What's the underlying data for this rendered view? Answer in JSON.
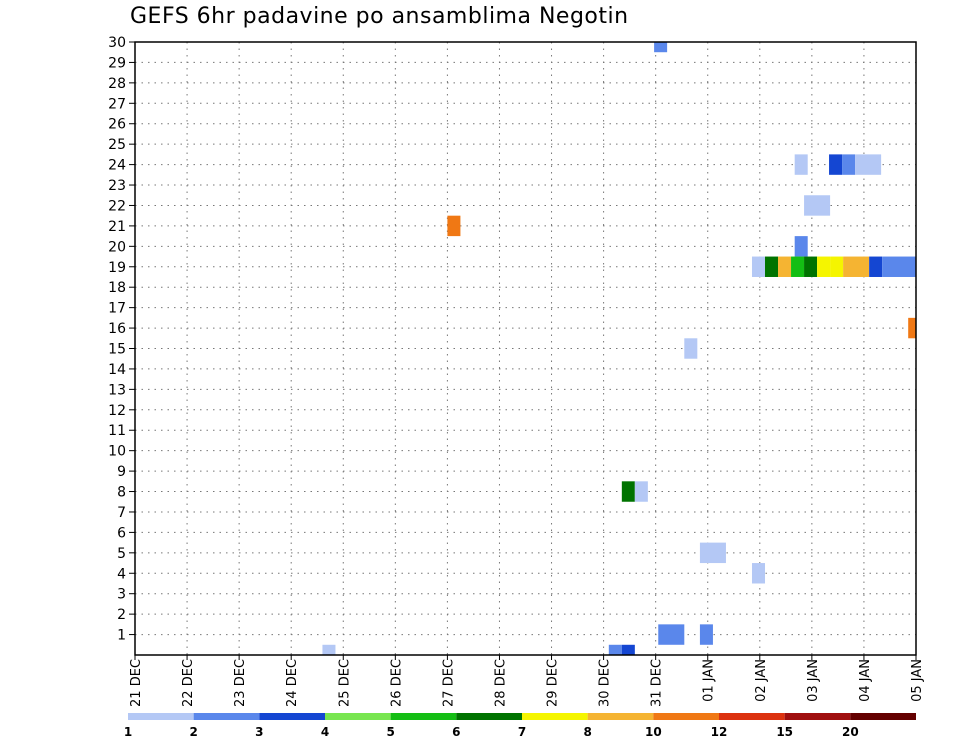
{
  "chart_data": {
    "type": "heatmap",
    "title": "GEFS 6hr padavine po ansamblima Negotin",
    "xlabel": "",
    "ylabel": "",
    "x_ticks": [
      "21 DEC",
      "22 DEC",
      "23 DEC",
      "24 DEC",
      "25 DEC",
      "26 DEC",
      "27 DEC",
      "28 DEC",
      "29 DEC",
      "30 DEC",
      "31 DEC",
      "01 JAN",
      "02 JAN",
      "03 JAN",
      "04 JAN",
      "05 JAN"
    ],
    "y_ticks": [
      1,
      2,
      3,
      4,
      5,
      6,
      7,
      8,
      9,
      10,
      11,
      12,
      13,
      14,
      15,
      16,
      17,
      18,
      19,
      20,
      21,
      22,
      23,
      24,
      25,
      26,
      27,
      28,
      29,
      30
    ],
    "xlim_days": [
      0,
      15
    ],
    "ylim": [
      0,
      30
    ],
    "grid": true,
    "legend": {
      "position": "bottom",
      "labels": [
        "1",
        "2",
        "3",
        "4",
        "5",
        "6",
        "7",
        "8",
        "10",
        "12",
        "15",
        "20"
      ],
      "colors": [
        "#b4c8f5",
        "#5a87eb",
        "#1446d2",
        "#78e650",
        "#14be14",
        "#007300",
        "#f5f500",
        "#f5b432",
        "#f07814",
        "#dc320f",
        "#a00f0f",
        "#640000"
      ]
    },
    "cells": [
      {
        "member": 30,
        "day": 9.97,
        "span": 0.25,
        "value": 2
      },
      {
        "member": 24,
        "day": 12.67,
        "span": 0.25,
        "value": 1
      },
      {
        "member": 24,
        "day": 13.33,
        "span": 0.25,
        "value": 3
      },
      {
        "member": 24,
        "day": 13.58,
        "span": 0.25,
        "value": 2
      },
      {
        "member": 24,
        "day": 13.83,
        "span": 0.5,
        "value": 1
      },
      {
        "member": 22,
        "day": 12.85,
        "span": 0.5,
        "value": 1
      },
      {
        "member": 21,
        "day": 6.0,
        "span": 0.25,
        "value": 10
      },
      {
        "member": 20,
        "day": 12.67,
        "span": 0.25,
        "value": 2
      },
      {
        "member": 19,
        "day": 11.85,
        "span": 0.25,
        "value": 1
      },
      {
        "member": 19,
        "day": 12.1,
        "span": 0.25,
        "value": 6
      },
      {
        "member": 19,
        "day": 12.35,
        "span": 0.25,
        "value": 8
      },
      {
        "member": 19,
        "day": 12.6,
        "span": 0.25,
        "value": 5
      },
      {
        "member": 19,
        "day": 12.85,
        "span": 0.25,
        "value": 6
      },
      {
        "member": 19,
        "day": 13.1,
        "span": 0.25,
        "value": 7
      },
      {
        "member": 19,
        "day": 13.35,
        "span": 0.25,
        "value": 7
      },
      {
        "member": 19,
        "day": 13.6,
        "span": 0.5,
        "value": 8
      },
      {
        "member": 19,
        "day": 14.1,
        "span": 0.25,
        "value": 3
      },
      {
        "member": 19,
        "day": 14.35,
        "span": 0.65,
        "value": 2
      },
      {
        "member": 16,
        "day": 14.85,
        "span": 0.15,
        "value": 10
      },
      {
        "member": 15,
        "day": 10.55,
        "span": 0.25,
        "value": 1
      },
      {
        "member": 8,
        "day": 9.35,
        "span": 0.25,
        "value": 6
      },
      {
        "member": 8,
        "day": 9.6,
        "span": 0.25,
        "value": 1
      },
      {
        "member": 5,
        "day": 10.85,
        "span": 0.5,
        "value": 1
      },
      {
        "member": 4,
        "day": 11.85,
        "span": 0.25,
        "value": 1
      },
      {
        "member": 1,
        "day": 10.05,
        "span": 0.5,
        "value": 2
      },
      {
        "member": 1,
        "day": 10.85,
        "span": 0.25,
        "value": 2
      },
      {
        "member": 0,
        "day": 3.6,
        "span": 0.25,
        "value": 1
      },
      {
        "member": 0,
        "day": 9.1,
        "span": 0.25,
        "value": 2
      },
      {
        "member": 0,
        "day": 9.35,
        "span": 0.25,
        "value": 3
      }
    ]
  }
}
